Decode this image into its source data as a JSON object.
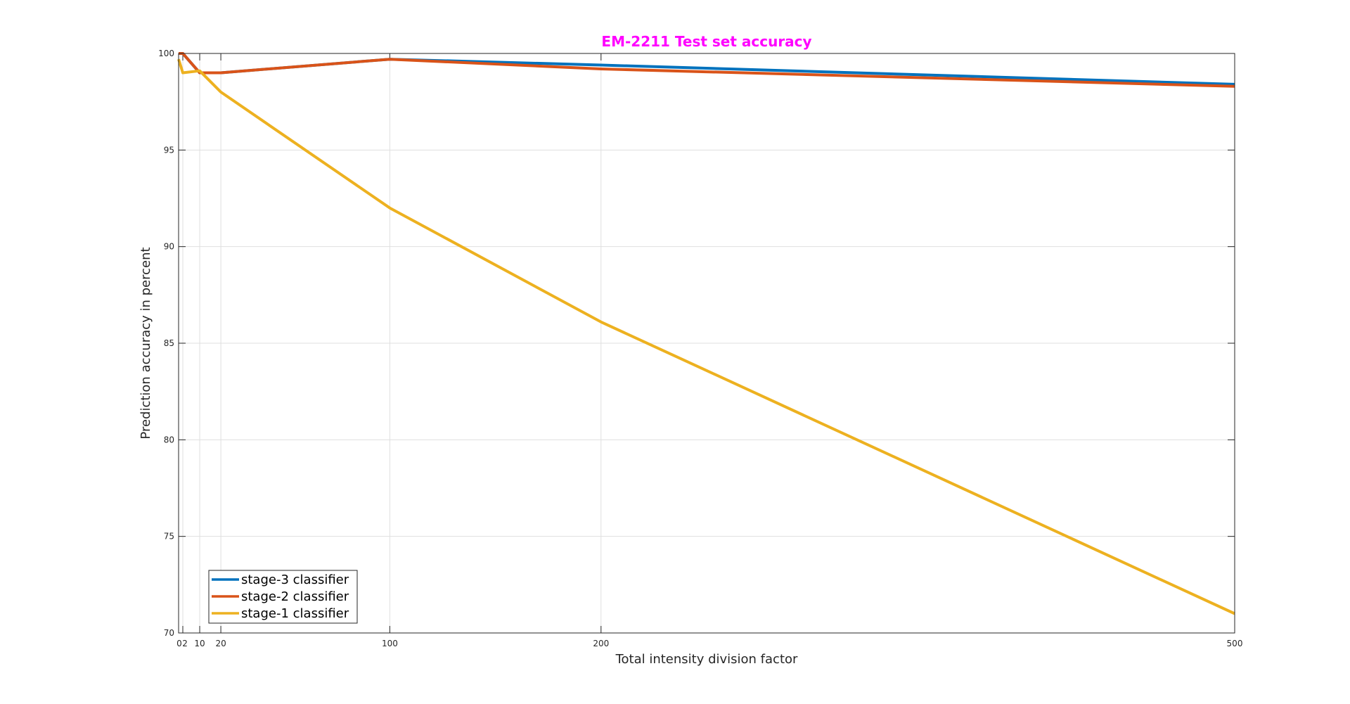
{
  "chart_data": {
    "type": "line",
    "title": "EM-2211 Test set accuracy",
    "title_color": "#FF00FF",
    "xlabel": "Total intensity division factor",
    "ylabel": "Prediction accuracy in percent",
    "xlim": [
      0,
      500
    ],
    "ylim": [
      70,
      100
    ],
    "xticks": [
      0,
      2,
      10,
      20,
      100,
      200,
      500
    ],
    "xtick_labels": [
      "0",
      "2",
      "10",
      "20",
      "100",
      "200",
      "500"
    ],
    "yticks": [
      70,
      75,
      80,
      85,
      90,
      95,
      100
    ],
    "ytick_labels": [
      "70",
      "75",
      "80",
      "85",
      "90",
      "95",
      "100"
    ],
    "grid": true,
    "legend_position": "bottom-left",
    "x": [
      0,
      2,
      10,
      20,
      100,
      200,
      500
    ],
    "series": [
      {
        "name": "stage-3 classifier",
        "color": "#0072BD",
        "values": [
          100,
          100,
          99,
          99,
          99.7,
          99.4,
          98.4
        ]
      },
      {
        "name": "stage-2 classifier",
        "color": "#D95319",
        "values": [
          100,
          100,
          99,
          99,
          99.7,
          99.2,
          98.3
        ]
      },
      {
        "name": "stage-1 classifier",
        "color": "#EDB120",
        "values": [
          99.7,
          99.0,
          99.1,
          98.0,
          92.0,
          86.1,
          71.0
        ]
      }
    ]
  }
}
